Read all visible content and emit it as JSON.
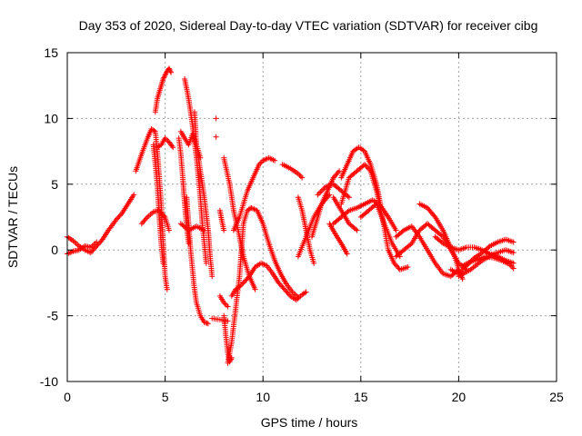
{
  "chart_data": {
    "type": "scatter",
    "title": "Day 353 of 2020, Sidereal Day-to-day VTEC variation (SDTVAR) for receiver cibg",
    "xlabel": "GPS time / hours",
    "ylabel": "SDTVAR / TECUs",
    "xlim": [
      0,
      25
    ],
    "ylim": [
      -10,
      15
    ],
    "grid": true,
    "marker": "+",
    "color": "#ff0000",
    "xticks": [
      0,
      5,
      10,
      15,
      20,
      25
    ],
    "yticks": [
      -10,
      -5,
      0,
      5,
      10,
      15
    ],
    "xtick_labels": [
      "0",
      "5",
      "10",
      "15",
      "20",
      "25"
    ],
    "ytick_labels": [
      "-10",
      "-5",
      "0",
      "5",
      "10",
      "15"
    ],
    "traces": [
      [
        [
          0.0,
          1.0
        ],
        [
          0.3,
          0.7
        ],
        [
          0.6,
          0.3
        ],
        [
          0.9,
          0.0
        ],
        [
          1.2,
          -0.2
        ],
        [
          1.5,
          0.3
        ],
        [
          1.8,
          0.8
        ],
        [
          2.1,
          1.5
        ],
        [
          2.5,
          2.3
        ],
        [
          2.8,
          2.8
        ],
        [
          3.1,
          3.5
        ],
        [
          3.4,
          4.2
        ]
      ],
      [
        [
          0.0,
          -0.3
        ],
        [
          0.3,
          -0.1
        ],
        [
          0.6,
          0.0
        ],
        [
          0.9,
          0.3
        ],
        [
          1.2,
          0.2
        ],
        [
          1.5,
          0.6
        ]
      ],
      [
        [
          3.8,
          2.0
        ],
        [
          4.1,
          2.5
        ],
        [
          4.4,
          2.9
        ],
        [
          4.7,
          3.0
        ],
        [
          5.0,
          2.5
        ],
        [
          5.2,
          1.5
        ]
      ],
      [
        [
          3.5,
          6.0
        ],
        [
          3.8,
          7.3
        ],
        [
          4.1,
          8.5
        ],
        [
          4.3,
          9.2
        ],
        [
          4.5,
          9.0
        ],
        [
          4.6,
          7.5
        ],
        [
          4.8,
          3.5
        ],
        [
          4.9,
          0.5
        ],
        [
          5.0,
          -2.0
        ],
        [
          5.1,
          -3.0
        ]
      ],
      [
        [
          4.5,
          10.5
        ],
        [
          4.6,
          11.5
        ],
        [
          4.7,
          12.0
        ],
        [
          4.8,
          12.5
        ],
        [
          4.9,
          13.0
        ],
        [
          5.0,
          13.3
        ],
        [
          5.1,
          13.6
        ],
        [
          5.2,
          13.8
        ],
        [
          5.3,
          13.5
        ]
      ],
      [
        [
          4.6,
          7.8
        ],
        [
          4.8,
          8.0
        ],
        [
          5.0,
          8.5
        ],
        [
          5.2,
          8.2
        ],
        [
          5.4,
          7.8
        ]
      ],
      [
        [
          4.4,
          8.0
        ],
        [
          4.6,
          5.0
        ],
        [
          4.7,
          2.5
        ],
        [
          4.8,
          0.5
        ],
        [
          4.9,
          -1.0
        ]
      ],
      [
        [
          5.7,
          8.5
        ],
        [
          5.8,
          7.3
        ],
        [
          5.9,
          5.5
        ],
        [
          6.0,
          3.5
        ],
        [
          6.1,
          1.8
        ],
        [
          6.2,
          0.5
        ]
      ],
      [
        [
          6.0,
          13.0
        ],
        [
          6.2,
          11.5
        ],
        [
          6.4,
          9.5
        ],
        [
          6.6,
          7.0
        ],
        [
          6.8,
          4.0
        ],
        [
          6.9,
          2.0
        ],
        [
          7.0,
          0.5
        ],
        [
          7.1,
          -1.0
        ]
      ],
      [
        [
          6.5,
          10.5
        ],
        [
          6.6,
          8.0
        ],
        [
          6.8,
          6.0
        ],
        [
          7.0,
          4.0
        ],
        [
          7.2,
          1.5
        ],
        [
          7.3,
          -0.5
        ],
        [
          7.4,
          -2.0
        ]
      ],
      [
        [
          5.8,
          2.0
        ],
        [
          6.2,
          1.5
        ],
        [
          6.6,
          1.8
        ],
        [
          7.0,
          1.5
        ]
      ],
      [
        [
          5.8,
          9.0
        ],
        [
          6.0,
          8.5
        ],
        [
          6.2,
          8.0
        ],
        [
          6.4,
          8.8
        ],
        [
          6.6,
          8.0
        ],
        [
          6.8,
          7.0
        ]
      ],
      [
        [
          6.1,
          4.0
        ],
        [
          6.2,
          2.0
        ],
        [
          6.3,
          0.0
        ],
        [
          6.4,
          -1.5
        ],
        [
          6.5,
          -3.0
        ],
        [
          6.6,
          -4.0
        ],
        [
          6.8,
          -5.0
        ],
        [
          7.0,
          -5.5
        ],
        [
          7.2,
          -5.6
        ]
      ],
      [
        [
          7.4,
          -5.2
        ],
        [
          7.8,
          -5.3
        ],
        [
          8.2,
          -5.4
        ]
      ],
      [
        [
          7.6,
          10.0
        ]
      ],
      [
        [
          7.6,
          8.6
        ]
      ],
      [
        [
          7.8,
          3.0
        ],
        [
          7.9,
          2.2
        ],
        [
          8.0,
          1.5
        ]
      ],
      [
        [
          7.8,
          -3.5
        ],
        [
          8.0,
          -4.0
        ],
        [
          8.2,
          -4.3
        ]
      ],
      [
        [
          8.0,
          -5.0
        ],
        [
          8.1,
          -6.5
        ],
        [
          8.2,
          -7.8
        ],
        [
          8.3,
          -8.5
        ],
        [
          8.4,
          -8.2
        ]
      ],
      [
        [
          8.2,
          -8.6
        ],
        [
          8.4,
          -7.0
        ],
        [
          8.6,
          -4.5
        ],
        [
          8.8,
          -2.0
        ],
        [
          8.9,
          0.0
        ],
        [
          9.0,
          2.0
        ],
        [
          9.2,
          3.0
        ],
        [
          9.4,
          3.2
        ]
      ],
      [
        [
          8.4,
          -3.5
        ],
        [
          8.6,
          -3.0
        ],
        [
          8.8,
          -2.8
        ],
        [
          9.0,
          -2.5
        ],
        [
          9.3,
          -2.0
        ],
        [
          9.6,
          -1.3
        ],
        [
          9.9,
          -1.0
        ],
        [
          10.2,
          -1.2
        ],
        [
          10.5,
          -1.8
        ],
        [
          10.8,
          -2.5
        ],
        [
          11.1,
          -3.0
        ],
        [
          11.4,
          -3.5
        ],
        [
          11.7,
          -3.8
        ],
        [
          12.0,
          -3.4
        ],
        [
          12.2,
          -3.2
        ]
      ],
      [
        [
          8.0,
          7.0
        ],
        [
          8.3,
          5.0
        ],
        [
          8.5,
          3.0
        ],
        [
          8.8,
          1.0
        ],
        [
          9.0,
          -0.5
        ],
        [
          9.3,
          -2.0
        ],
        [
          9.6,
          -3.0
        ]
      ],
      [
        [
          8.5,
          1.5
        ],
        [
          8.8,
          2.5
        ],
        [
          9.0,
          3.5
        ],
        [
          9.2,
          4.5
        ],
        [
          9.5,
          5.5
        ],
        [
          9.8,
          6.5
        ],
        [
          10.0,
          6.8
        ],
        [
          10.3,
          7.0
        ],
        [
          10.6,
          6.8
        ]
      ],
      [
        [
          9.4,
          3.2
        ],
        [
          9.7,
          3.0
        ],
        [
          10.0,
          2.0
        ],
        [
          10.3,
          0.5
        ],
        [
          10.6,
          -0.8
        ],
        [
          10.9,
          -1.8
        ],
        [
          11.2,
          -2.6
        ],
        [
          11.5,
          -3.2
        ],
        [
          11.8,
          -3.6
        ]
      ],
      [
        [
          11.0,
          6.5
        ],
        [
          11.4,
          6.2
        ],
        [
          11.8,
          5.8
        ],
        [
          12.0,
          5.5
        ]
      ],
      [
        [
          11.8,
          4.0
        ],
        [
          12.0,
          3.0
        ],
        [
          12.2,
          1.5
        ],
        [
          12.4,
          0.0
        ],
        [
          12.6,
          -1.0
        ]
      ],
      [
        [
          11.8,
          -0.5
        ],
        [
          12.2,
          1.0
        ],
        [
          12.6,
          2.5
        ],
        [
          13.0,
          3.5
        ],
        [
          13.4,
          4.2
        ]
      ],
      [
        [
          12.5,
          1.0
        ],
        [
          12.8,
          2.5
        ],
        [
          13.0,
          3.5
        ],
        [
          13.3,
          4.5
        ],
        [
          13.6,
          5.5
        ],
        [
          13.9,
          6.0
        ]
      ],
      [
        [
          12.8,
          4.2
        ],
        [
          13.2,
          4.8
        ],
        [
          13.6,
          5.0
        ],
        [
          14.0,
          4.5
        ],
        [
          14.4,
          4.0
        ]
      ],
      [
        [
          13.4,
          2.0
        ],
        [
          13.7,
          1.2
        ],
        [
          14.0,
          0.5
        ],
        [
          14.3,
          -0.3
        ]
      ],
      [
        [
          13.6,
          2.0
        ],
        [
          14.0,
          2.5
        ],
        [
          14.4,
          3.0
        ],
        [
          14.8,
          3.2
        ],
        [
          15.2,
          3.5
        ],
        [
          15.6,
          3.8
        ],
        [
          16.0,
          3.4
        ],
        [
          16.4,
          2.5
        ],
        [
          16.8,
          1.5
        ]
      ],
      [
        [
          14.0,
          5.5
        ],
        [
          14.3,
          6.5
        ],
        [
          14.6,
          7.5
        ],
        [
          14.9,
          7.8
        ],
        [
          15.2,
          7.5
        ],
        [
          15.5,
          6.5
        ],
        [
          15.8,
          5.0
        ],
        [
          16.0,
          3.5
        ]
      ],
      [
        [
          13.6,
          4.0
        ],
        [
          14.0,
          3.0
        ],
        [
          14.4,
          2.0
        ],
        [
          14.8,
          1.5
        ]
      ],
      [
        [
          14.0,
          3.5
        ],
        [
          14.4,
          5.5
        ],
        [
          14.8,
          6.0
        ],
        [
          15.2,
          6.5
        ],
        [
          15.5,
          6.0
        ],
        [
          15.8,
          4.5
        ],
        [
          16.1,
          2.5
        ],
        [
          16.4,
          0.0
        ],
        [
          16.7,
          -1.0
        ],
        [
          17.0,
          -1.5
        ],
        [
          17.4,
          -1.3
        ]
      ],
      [
        [
          15.0,
          2.5
        ],
        [
          15.4,
          3.0
        ],
        [
          15.8,
          3.5
        ],
        [
          16.2,
          2.0
        ],
        [
          16.6,
          0.5
        ],
        [
          17.0,
          -0.5
        ]
      ],
      [
        [
          16.8,
          -0.5
        ],
        [
          17.2,
          0.0
        ],
        [
          17.6,
          0.5
        ],
        [
          18.0,
          1.5
        ],
        [
          18.4,
          2.0
        ],
        [
          18.8,
          1.5
        ],
        [
          19.2,
          1.0
        ],
        [
          19.6,
          0.0
        ],
        [
          20.0,
          -1.0
        ],
        [
          20.4,
          -1.5
        ]
      ],
      [
        [
          16.8,
          1.0
        ],
        [
          17.2,
          1.5
        ],
        [
          17.6,
          1.8
        ],
        [
          18.0,
          1.0
        ],
        [
          18.4,
          0.0
        ],
        [
          18.8,
          -1.0
        ],
        [
          19.2,
          -1.8
        ],
        [
          19.6,
          -2.0
        ],
        [
          20.0,
          -1.5
        ]
      ],
      [
        [
          18.0,
          3.5
        ],
        [
          18.4,
          3.2
        ],
        [
          18.8,
          2.5
        ],
        [
          19.2,
          1.5
        ],
        [
          19.5,
          0.5
        ],
        [
          19.8,
          -0.5
        ],
        [
          20.0,
          -1.5
        ],
        [
          20.2,
          -2.2
        ]
      ],
      [
        [
          18.8,
          1.0
        ],
        [
          19.2,
          0.5
        ],
        [
          19.6,
          0.2
        ],
        [
          20.0,
          0.0
        ],
        [
          20.4,
          0.2
        ],
        [
          20.8,
          0.2
        ],
        [
          21.2,
          0.0
        ],
        [
          21.6,
          -0.3
        ],
        [
          22.0,
          -0.5
        ],
        [
          22.4,
          -0.8
        ],
        [
          22.8,
          -1.0
        ]
      ],
      [
        [
          19.6,
          -1.5
        ],
        [
          20.0,
          -1.8
        ],
        [
          20.4,
          -1.2
        ],
        [
          20.8,
          -0.6
        ],
        [
          21.2,
          -0.2
        ],
        [
          21.6,
          0.3
        ],
        [
          22.0,
          0.6
        ],
        [
          22.4,
          0.8
        ],
        [
          22.8,
          0.6
        ]
      ],
      [
        [
          20.2,
          -1.2
        ],
        [
          20.6,
          -0.9
        ],
        [
          21.0,
          -0.7
        ],
        [
          21.4,
          -0.5
        ],
        [
          21.8,
          -0.6
        ],
        [
          22.2,
          -0.8
        ],
        [
          22.6,
          -1.1
        ],
        [
          22.8,
          -1.4
        ]
      ],
      [
        [
          20.0,
          -2.0
        ],
        [
          20.6,
          -1.5
        ],
        [
          21.2,
          -0.8
        ],
        [
          21.8,
          -0.3
        ],
        [
          22.4,
          0.0
        ],
        [
          22.8,
          -0.2
        ]
      ]
    ]
  }
}
